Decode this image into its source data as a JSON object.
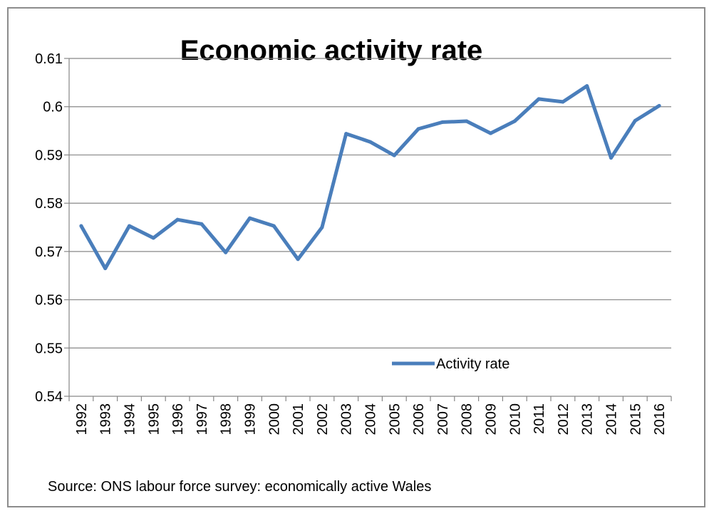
{
  "chart_data": {
    "type": "line",
    "title": "Economic activity rate",
    "xlabel": "",
    "ylabel": "",
    "categories": [
      "1992",
      "1993",
      "1994",
      "1995",
      "1996",
      "1997",
      "1998",
      "1999",
      "2000",
      "2001",
      "2002",
      "2003",
      "2004",
      "2005",
      "2006",
      "2007",
      "2008",
      "2009",
      "2010",
      "2011",
      "2012",
      "2013",
      "2014",
      "2015",
      "2016"
    ],
    "series": [
      {
        "name": "Activity rate",
        "color": "#4a7ebb",
        "values": [
          0.5753,
          0.5665,
          0.5753,
          0.5728,
          0.5766,
          0.5757,
          0.5698,
          0.5769,
          0.5753,
          0.5684,
          0.575,
          0.5944,
          0.5927,
          0.5899,
          0.5954,
          0.5968,
          0.597,
          0.5945,
          0.597,
          0.6016,
          0.601,
          0.6043,
          0.5894,
          0.5971,
          0.6002
        ]
      }
    ],
    "ylim": [
      0.54,
      0.61
    ],
    "yticks": [
      "0.54",
      "0.55",
      "0.56",
      "0.57",
      "0.58",
      "0.59",
      "0.6",
      "0.61"
    ],
    "grid": true,
    "legend": "bottom-right",
    "source_note": "Source: ONS labour force survey: economically active Wales"
  }
}
